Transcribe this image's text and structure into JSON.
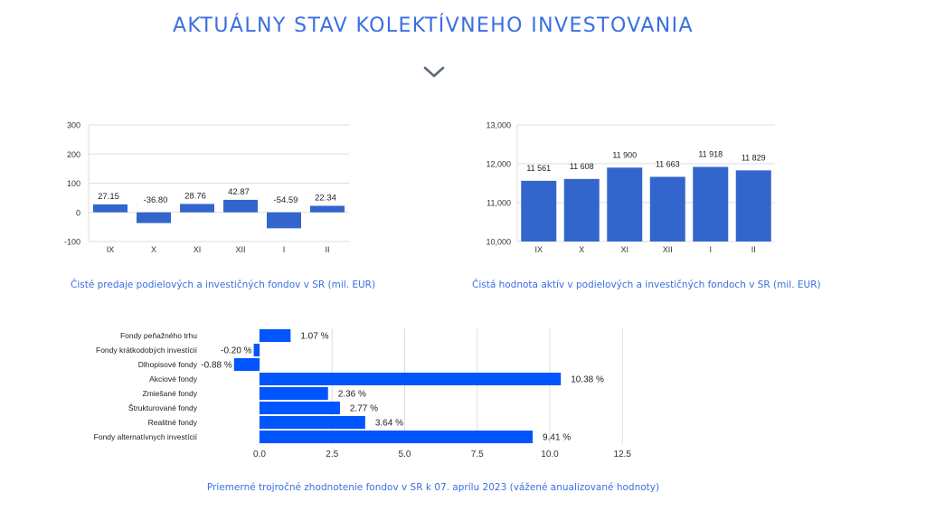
{
  "page": {
    "title": "AKTUÁLNY STAV KOLEKTÍVNEHO INVESTOVANIA",
    "chevron_icon": "chevron-down-icon"
  },
  "colors": {
    "accent_text": "#3a6fdf",
    "bar_medium": "#3366cc",
    "bar_bright": "#0055ff",
    "grid": "#dddddd",
    "axis_text": "#333333"
  },
  "chart_data": [
    {
      "id": "net-sales",
      "type": "bar",
      "caption": "Čisté predaje podielových a investičných fondov v SR (mil. EUR)",
      "categories": [
        "IX",
        "X",
        "XI",
        "XII",
        "I",
        "II"
      ],
      "values": [
        27.15,
        -36.8,
        28.76,
        42.87,
        -54.59,
        22.34
      ],
      "value_labels": [
        "27.15",
        "-36.80",
        "28.76",
        "42.87",
        "-54.59",
        "22.34"
      ],
      "ylim": [
        -100,
        300
      ],
      "yticks": [
        -100,
        0,
        100,
        200,
        300
      ],
      "ytick_labels": [
        "-100",
        "0",
        "100",
        "200",
        "300"
      ],
      "grid": true
    },
    {
      "id": "net-assets",
      "type": "bar",
      "caption": "Čistá hodnota aktív v podielových a investičných fondoch v SR (mil. EUR)",
      "categories": [
        "IX",
        "X",
        "XI",
        "XII",
        "I",
        "II"
      ],
      "values": [
        11561,
        11608,
        11900,
        11663,
        11918,
        11829
      ],
      "value_labels": [
        "11 561",
        "11 608",
        "11 900",
        "11 663",
        "11 918",
        "11 829"
      ],
      "ylim": [
        10000,
        13000
      ],
      "yticks": [
        10000,
        11000,
        12000,
        13000
      ],
      "ytick_labels": [
        "10,000",
        "11,000",
        "12,000",
        "13,000"
      ],
      "grid": true
    },
    {
      "id": "fund-returns",
      "type": "bar",
      "orientation": "horizontal",
      "caption": "Priemerné trojročné zhodnotenie fondov v SR k 07. aprílu 2023 (vážené anualizované hodnoty)",
      "categories": [
        "Fondy peňažného trhu",
        "Fondy krátkodobých investícií",
        "Dlhopisové fondy",
        "Akciové fondy",
        "Zmiešané fondy",
        "Štrukturované fondy",
        "Realitné fondy",
        "Fondy alternatívnych investícií"
      ],
      "values": [
        1.07,
        -0.2,
        -0.88,
        10.38,
        2.36,
        2.77,
        3.64,
        9.41
      ],
      "value_labels": [
        "1.07 %",
        "-0.20 %",
        "-0.88 %",
        "10.38 %",
        "2.36 %",
        "2.77 %",
        "3.64 %",
        "9.41 %"
      ],
      "xlim": [
        0,
        12.5
      ],
      "xticks": [
        0,
        2.5,
        5,
        7.5,
        10,
        12.5
      ],
      "xtick_labels": [
        "0.0",
        "2.5",
        "5.0",
        "7.5",
        "10.0",
        "12.5"
      ],
      "grid": true
    }
  ]
}
